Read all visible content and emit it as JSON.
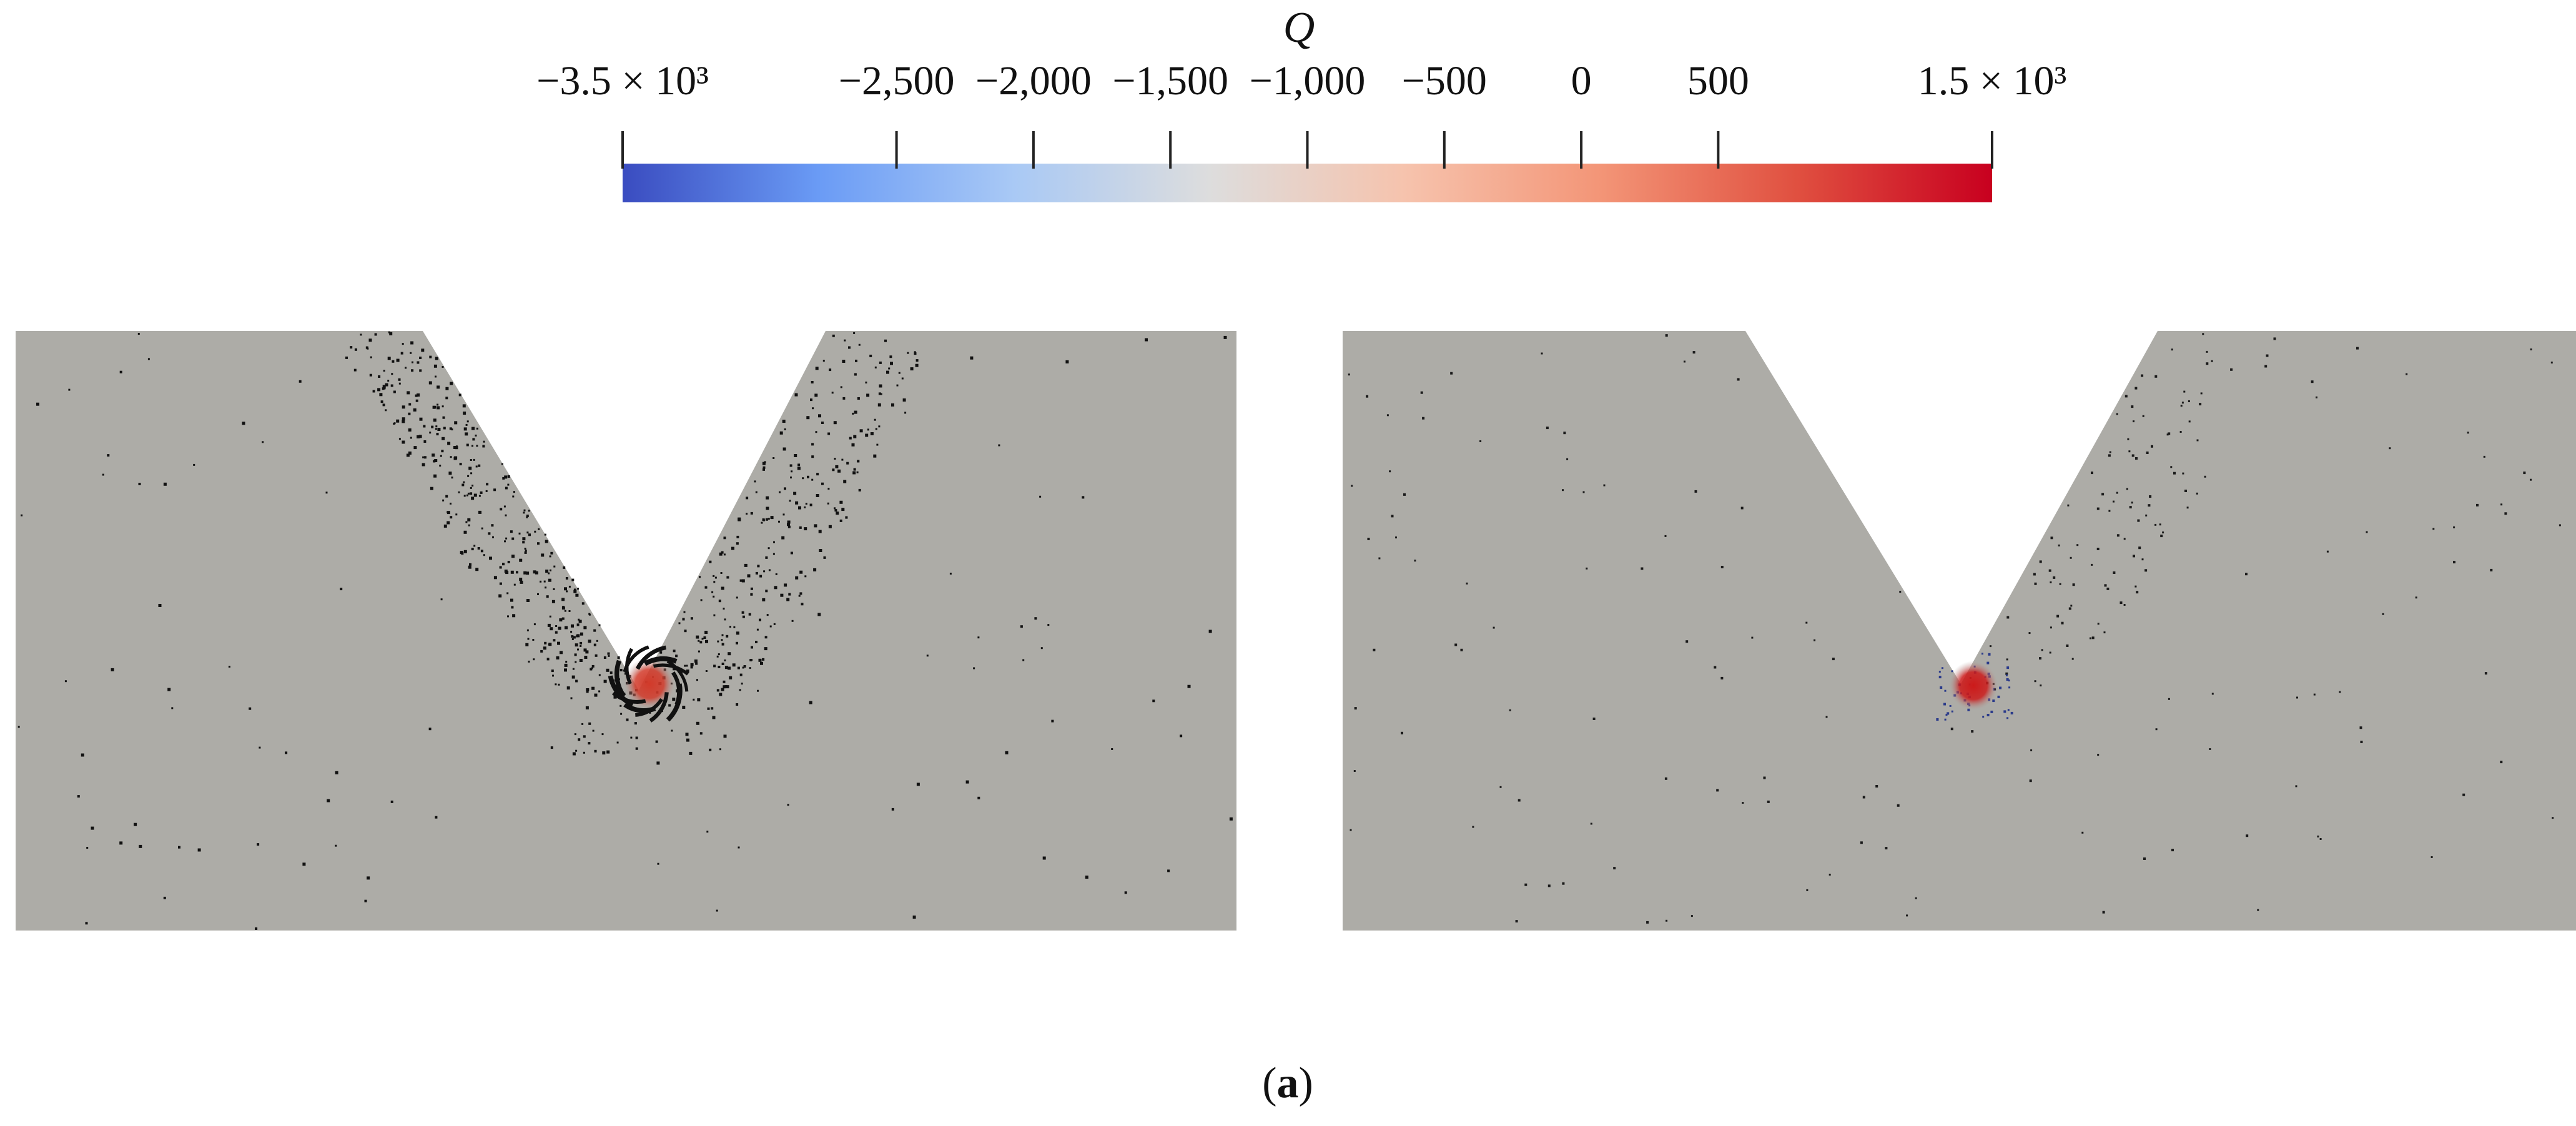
{
  "colorbar": {
    "title": "Q",
    "min": -3500,
    "max": 1500,
    "colors": [
      "#3a4cc0",
      "#6a9bf5",
      "#a9c9f5",
      "#dddddd",
      "#f6c3ad",
      "#f39577",
      "#e05040",
      "#c8001f"
    ],
    "ticks": [
      {
        "value": -3500,
        "label": "−3.5 × 10³"
      },
      {
        "value": -2500,
        "label": "−2,500"
      },
      {
        "value": -2000,
        "label": "−2,000"
      },
      {
        "value": -1500,
        "label": "−1,500"
      },
      {
        "value": -1000,
        "label": "−1,000"
      },
      {
        "value": -500,
        "label": "−500"
      },
      {
        "value": 0,
        "label": "0"
      },
      {
        "value": 500,
        "label": "500"
      },
      {
        "value": 1500,
        "label": "1.5 × 10³"
      }
    ]
  },
  "panels": {
    "background_color": "#adaca7",
    "left": {
      "vortex_color": "#d23a2a",
      "marks_color": "#111111"
    },
    "right": {
      "vortex_color": "#cc1a1a",
      "marks_color": "#2a3a8a"
    }
  },
  "caption": {
    "paren_open": "(",
    "letter": "a",
    "paren_close": ")"
  }
}
